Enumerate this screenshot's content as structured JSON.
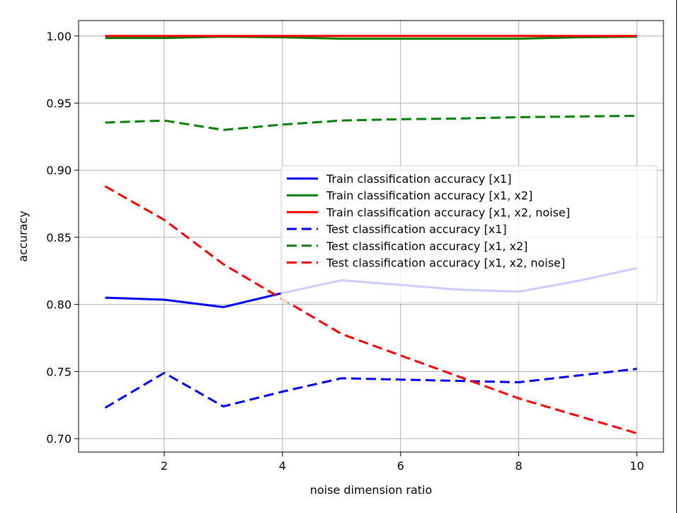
{
  "chart_data": {
    "type": "line",
    "title": "",
    "xlabel": "noise dimension ratio",
    "ylabel": "accuracy",
    "x": [
      1,
      2,
      3,
      4,
      5,
      6,
      7,
      8,
      9,
      10
    ],
    "xlim": [
      0.55,
      10.45
    ],
    "ylim": [
      0.69,
      1.0115
    ],
    "xticks": [
      2,
      4,
      6,
      8,
      10
    ],
    "yticks": [
      0.7,
      0.75,
      0.8,
      0.85,
      0.9,
      0.95,
      1.0
    ],
    "grid": true,
    "legend_position": "center-right",
    "series": [
      {
        "name": "Train classification accuracy [x1]",
        "color": "#0000ff",
        "dash": "solid",
        "values": [
          0.805,
          0.8035,
          0.798,
          0.8085,
          0.818,
          0.8145,
          0.811,
          0.8095,
          0.8175,
          0.827
        ]
      },
      {
        "name": "Train classification accuracy [x1, x2]",
        "color": "#008000",
        "dash": "solid",
        "values": [
          0.9985,
          0.9985,
          0.9995,
          0.999,
          0.998,
          0.998,
          0.998,
          0.998,
          0.999,
          0.9995
        ]
      },
      {
        "name": "Train classification accuracy [x1, x2, noise]",
        "color": "#ff0000",
        "dash": "solid",
        "values": [
          1.0,
          1.0,
          1.0,
          1.0,
          1.0,
          1.0,
          1.0,
          1.0,
          1.0,
          1.0
        ]
      },
      {
        "name": "Test classification accuracy [x1]",
        "color": "#0000ff",
        "dash": "dashed",
        "values": [
          0.723,
          0.749,
          0.724,
          0.735,
          0.745,
          0.744,
          0.743,
          0.742,
          0.747,
          0.752
        ]
      },
      {
        "name": "Test classification accuracy [x1, x2]",
        "color": "#008000",
        "dash": "dashed",
        "values": [
          0.9355,
          0.937,
          0.93,
          0.934,
          0.937,
          0.938,
          0.9385,
          0.9395,
          0.94,
          0.9405
        ]
      },
      {
        "name": "Test classification accuracy [x1, x2, noise]",
        "color": "#ff0000",
        "dash": "dashed",
        "values": [
          0.888,
          0.863,
          0.83,
          0.804,
          0.778,
          0.762,
          0.746,
          0.73,
          0.717,
          0.704
        ]
      }
    ]
  }
}
